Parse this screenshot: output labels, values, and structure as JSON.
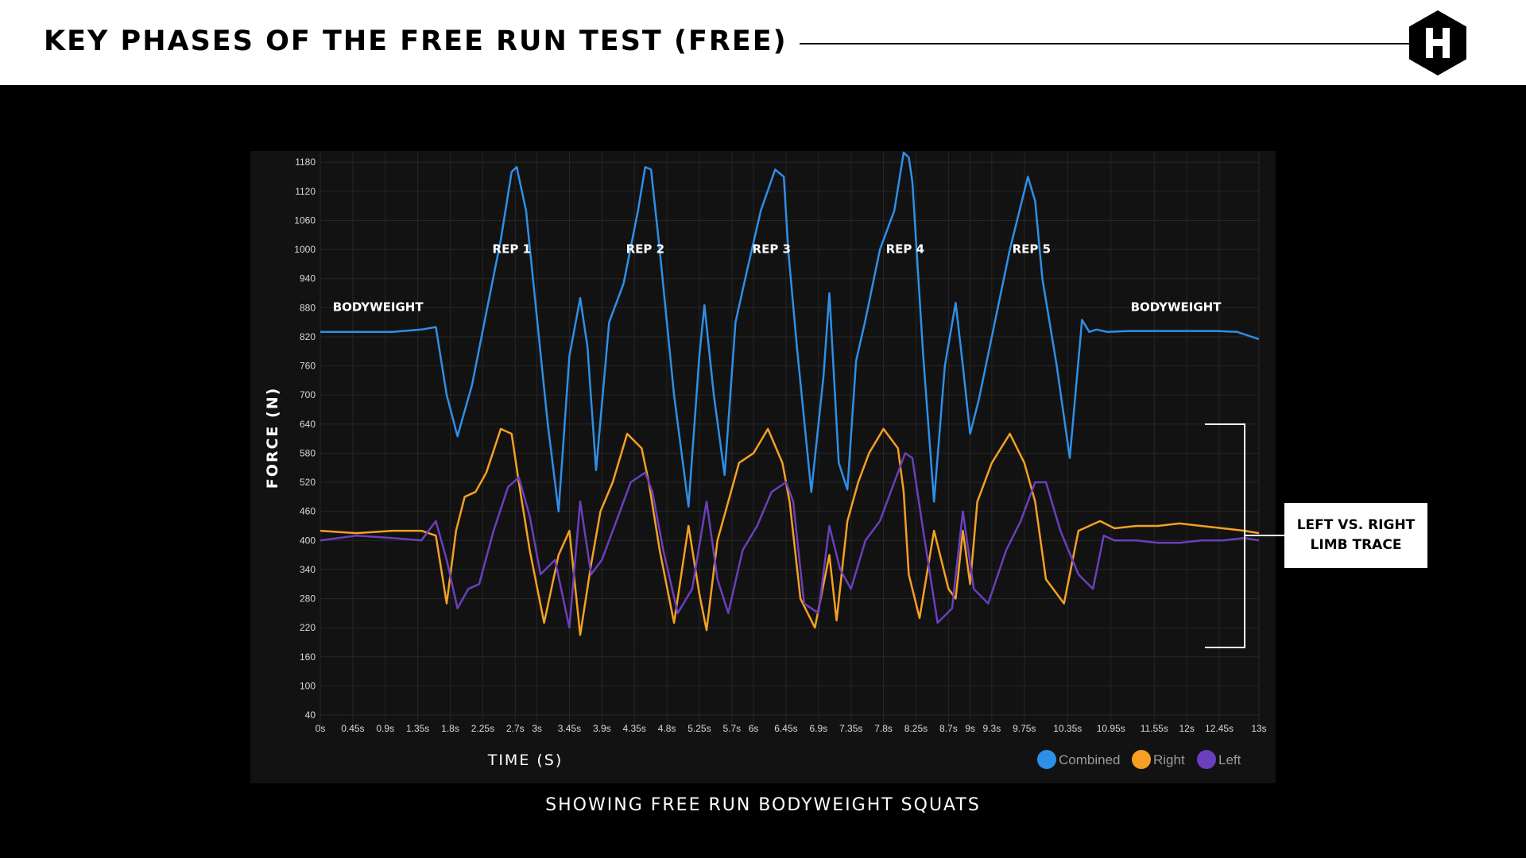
{
  "header": {
    "title": "KEY PHASES OF THE FREE RUN TEST (FREE)",
    "logo_icon": "hexagon-h-logo-icon"
  },
  "subtitle": "SHOWING FREE RUN BODYWEIGHT SQUATS",
  "callout": {
    "line1": "LEFT VS. RIGHT",
    "line2": "LIMB TRACE"
  },
  "chart_data": {
    "type": "line",
    "title": "",
    "xlabel": "TIME (S)",
    "ylabel": "FORCE (N)",
    "xlim": [
      0,
      13
    ],
    "ylim": [
      40,
      1200
    ],
    "grid": true,
    "legend_position": "bottom-right",
    "y_ticks": [
      40,
      100,
      160,
      220,
      280,
      340,
      400,
      460,
      520,
      580,
      640,
      700,
      760,
      820,
      880,
      940,
      1000,
      1060,
      1120,
      1180
    ],
    "x_ticks": [
      {
        "value": 0,
        "label": "0s"
      },
      {
        "value": 0.45,
        "label": "0.45s"
      },
      {
        "value": 0.9,
        "label": "0.9s"
      },
      {
        "value": 1.35,
        "label": "1.35s"
      },
      {
        "value": 1.8,
        "label": "1.8s"
      },
      {
        "value": 2.25,
        "label": "2.25s"
      },
      {
        "value": 2.7,
        "label": "2.7s"
      },
      {
        "value": 3,
        "label": "3s"
      },
      {
        "value": 3.45,
        "label": "3.45s"
      },
      {
        "value": 3.9,
        "label": "3.9s"
      },
      {
        "value": 4.35,
        "label": "4.35s"
      },
      {
        "value": 4.8,
        "label": "4.8s"
      },
      {
        "value": 5.25,
        "label": "5.25s"
      },
      {
        "value": 5.7,
        "label": "5.7s"
      },
      {
        "value": 6,
        "label": "6s"
      },
      {
        "value": 6.45,
        "label": "6.45s"
      },
      {
        "value": 6.9,
        "label": "6.9s"
      },
      {
        "value": 7.35,
        "label": "7.35s"
      },
      {
        "value": 7.8,
        "label": "7.8s"
      },
      {
        "value": 8.25,
        "label": "8.25s"
      },
      {
        "value": 8.7,
        "label": "8.7s"
      },
      {
        "value": 9,
        "label": "9s"
      },
      {
        "value": 9.3,
        "label": "9.3s"
      },
      {
        "value": 9.75,
        "label": "9.75s"
      },
      {
        "value": 10.35,
        "label": "10.35s"
      },
      {
        "value": 10.95,
        "label": "10.95s"
      },
      {
        "value": 11.55,
        "label": "11.55s"
      },
      {
        "value": 12,
        "label": "12s"
      },
      {
        "value": 12.45,
        "label": "12.45s"
      },
      {
        "value": 13,
        "label": "13s"
      }
    ],
    "annotations": [
      {
        "text": "BODYWEIGHT",
        "x": 0.8,
        "y": 873
      },
      {
        "text": "REP 1",
        "x": 2.65,
        "y": 993
      },
      {
        "text": "REP 2",
        "x": 4.5,
        "y": 993
      },
      {
        "text": "REP 3",
        "x": 6.25,
        "y": 993
      },
      {
        "text": "REP 4",
        "x": 8.1,
        "y": 993
      },
      {
        "text": "REP 5",
        "x": 9.85,
        "y": 993
      },
      {
        "text": "BODYWEIGHT",
        "x": 11.85,
        "y": 873
      }
    ],
    "series": [
      {
        "name": "Combined",
        "color": "#2e8fe8",
        "x": [
          0,
          0.5,
          1.0,
          1.4,
          1.6,
          1.75,
          1.9,
          2.1,
          2.3,
          2.5,
          2.65,
          2.72,
          2.85,
          3.0,
          3.15,
          3.3,
          3.45,
          3.6,
          3.7,
          3.82,
          4.0,
          4.2,
          4.4,
          4.5,
          4.58,
          4.7,
          4.9,
          5.1,
          5.25,
          5.32,
          5.45,
          5.6,
          5.75,
          5.9,
          6.1,
          6.3,
          6.42,
          6.48,
          6.6,
          6.8,
          6.97,
          7.05,
          7.18,
          7.3,
          7.42,
          7.55,
          7.75,
          7.95,
          8.08,
          8.15,
          8.2,
          8.35,
          8.5,
          8.65,
          8.8,
          8.9,
          9.0,
          9.12,
          9.3,
          9.55,
          9.8,
          9.9,
          10.0,
          10.2,
          10.38,
          10.55,
          10.65,
          10.75,
          10.9,
          11.2,
          11.5,
          11.8,
          12.1,
          12.4,
          12.7,
          13.0
        ],
        "y": [
          830,
          830,
          830,
          835,
          840,
          700,
          615,
          720,
          870,
          1020,
          1160,
          1170,
          1080,
          860,
          640,
          460,
          780,
          900,
          800,
          545,
          850,
          930,
          1080,
          1170,
          1165,
          1000,
          700,
          470,
          780,
          885,
          700,
          535,
          850,
          950,
          1080,
          1165,
          1150,
          1000,
          800,
          500,
          740,
          910,
          560,
          505,
          770,
          855,
          1000,
          1080,
          1200,
          1190,
          1140,
          780,
          480,
          760,
          890,
          760,
          620,
          690,
          820,
          1000,
          1150,
          1100,
          940,
          760,
          570,
          855,
          830,
          835,
          830,
          832,
          832,
          832,
          832,
          832,
          830,
          815
        ]
      },
      {
        "name": "Right",
        "color": "#f5a023",
        "x": [
          0,
          0.5,
          1.0,
          1.4,
          1.6,
          1.75,
          1.88,
          2.0,
          2.15,
          2.3,
          2.5,
          2.65,
          2.75,
          2.9,
          3.1,
          3.3,
          3.45,
          3.6,
          3.75,
          3.88,
          4.05,
          4.25,
          4.45,
          4.55,
          4.7,
          4.9,
          5.1,
          5.25,
          5.35,
          5.5,
          5.65,
          5.8,
          6.0,
          6.2,
          6.4,
          6.5,
          6.65,
          6.85,
          7.05,
          7.15,
          7.3,
          7.45,
          7.6,
          7.8,
          8.0,
          8.08,
          8.15,
          8.3,
          8.5,
          8.7,
          8.8,
          8.9,
          9.0,
          9.1,
          9.3,
          9.55,
          9.75,
          9.9,
          10.05,
          10.3,
          10.5,
          10.65,
          10.8,
          11.0,
          11.3,
          11.6,
          11.9,
          12.2,
          12.5,
          12.8,
          13.0
        ],
        "y": [
          420,
          415,
          420,
          420,
          410,
          270,
          420,
          490,
          500,
          540,
          630,
          620,
          520,
          380,
          230,
          370,
          420,
          205,
          350,
          460,
          520,
          620,
          590,
          520,
          380,
          230,
          430,
          290,
          215,
          400,
          480,
          560,
          580,
          630,
          560,
          480,
          280,
          220,
          370,
          235,
          440,
          520,
          580,
          630,
          590,
          500,
          330,
          240,
          420,
          300,
          280,
          420,
          310,
          480,
          560,
          620,
          560,
          480,
          320,
          270,
          420,
          430,
          440,
          425,
          430,
          430,
          435,
          430,
          425,
          420,
          415
        ]
      },
      {
        "name": "Left",
        "color": "#6a3fbd",
        "x": [
          0,
          0.5,
          1.0,
          1.4,
          1.6,
          1.75,
          1.9,
          2.05,
          2.2,
          2.4,
          2.6,
          2.75,
          2.9,
          3.05,
          3.25,
          3.45,
          3.6,
          3.75,
          3.9,
          4.1,
          4.3,
          4.5,
          4.6,
          4.75,
          4.95,
          5.15,
          5.35,
          5.5,
          5.65,
          5.85,
          6.05,
          6.25,
          6.45,
          6.55,
          6.7,
          6.9,
          7.05,
          7.2,
          7.35,
          7.55,
          7.75,
          7.95,
          8.1,
          8.2,
          8.35,
          8.55,
          8.75,
          8.9,
          9.05,
          9.25,
          9.5,
          9.7,
          9.9,
          10.05,
          10.25,
          10.5,
          10.7,
          10.85,
          11.0,
          11.3,
          11.6,
          11.9,
          12.2,
          12.5,
          12.8,
          13.0
        ],
        "y": [
          400,
          410,
          405,
          400,
          440,
          360,
          260,
          300,
          310,
          420,
          510,
          530,
          450,
          330,
          360,
          220,
          480,
          330,
          360,
          440,
          520,
          540,
          500,
          380,
          250,
          300,
          480,
          320,
          250,
          380,
          430,
          500,
          520,
          480,
          270,
          250,
          430,
          340,
          300,
          400,
          440,
          520,
          580,
          570,
          420,
          230,
          260,
          460,
          300,
          270,
          380,
          440,
          520,
          520,
          420,
          330,
          300,
          410,
          400,
          400,
          395,
          395,
          400,
          400,
          405,
          400
        ]
      }
    ]
  }
}
